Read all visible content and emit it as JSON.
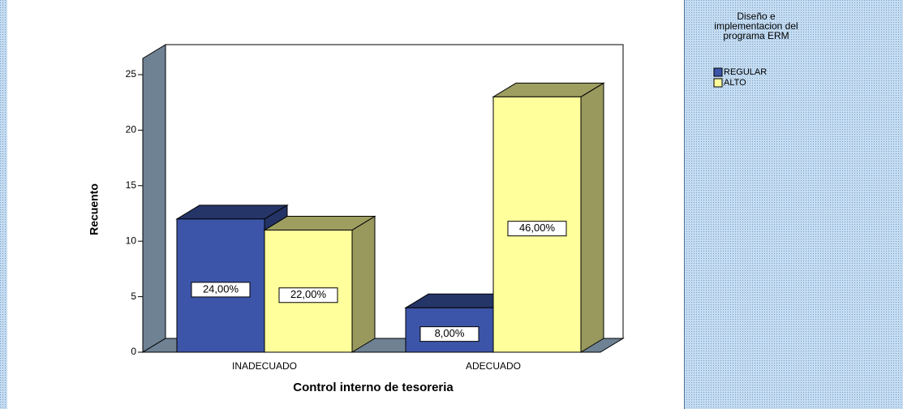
{
  "chart_data": {
    "type": "bar3d",
    "x_label": "Control interno de tesoreria",
    "y_label": "Recuento",
    "categories": [
      "INADECUADO",
      "ADECUADO"
    ],
    "legend_title": "Diseño e implementacion del programa ERM",
    "series": [
      {
        "name": "REGULAR",
        "color": "#3c55a8",
        "values": [
          12,
          4
        ],
        "percents": [
          24,
          8
        ],
        "percent_labels": [
          "24,00%",
          "8,00%"
        ]
      },
      {
        "name": "ALTO",
        "color": "#ffff9c",
        "values": [
          11,
          23
        ],
        "percents": [
          22,
          46
        ],
        "percent_labels": [
          "22,00%",
          "46,00%"
        ]
      }
    ],
    "ylim": [
      0,
      25
    ],
    "yticks": [
      0,
      5,
      10,
      15,
      20,
      25
    ]
  }
}
